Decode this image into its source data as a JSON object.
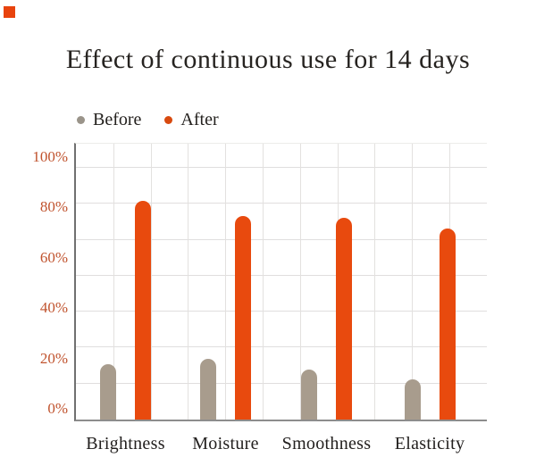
{
  "chart_data": {
    "type": "bar",
    "title": "Effect of continuous use for 14 days",
    "categories": [
      "Brightness",
      "Moisture",
      "Smoothness",
      "Elasticity"
    ],
    "series": [
      {
        "name": "Before",
        "color": "#a89c8d",
        "values": [
          22,
          24,
          20,
          16
        ]
      },
      {
        "name": "After",
        "color": "#e84a0e",
        "values": [
          87,
          81,
          80,
          76
        ]
      }
    ],
    "unit": "%",
    "y_ticks": [
      "0%",
      "20%",
      "40%",
      "60%",
      "80%",
      "100%"
    ],
    "y_tick_values": [
      0,
      20,
      40,
      60,
      80,
      100
    ],
    "ylim": [
      0,
      100
    ],
    "grid": "square",
    "legend_position": "top-left",
    "xlabel": "",
    "ylabel": ""
  },
  "legend": {
    "items": [
      {
        "label": "Before",
        "dot_color": "#9a948a"
      },
      {
        "label": "After",
        "dot_color": "#d84a0f"
      }
    ]
  },
  "colors": {
    "background": "#ffffff",
    "title_text": "#262320",
    "category_text": "#23201f",
    "axis_tick_text": "#c0532e",
    "gridline": "#e0dede",
    "y_axis_line": "#707070",
    "baseline": "#8d8d8d",
    "bar_before": "#a89c8d",
    "bar_after": "#e84a0e",
    "corner_marker": "#e8430d"
  }
}
